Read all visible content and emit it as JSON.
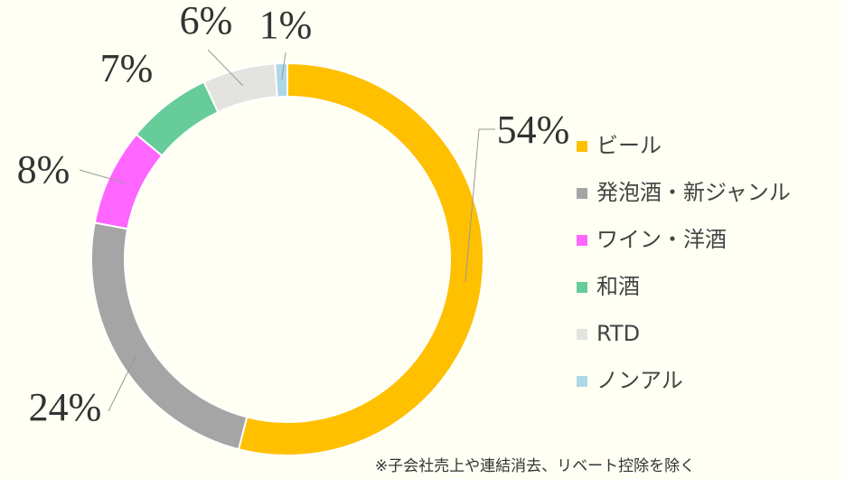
{
  "chart_data": {
    "type": "donut",
    "categories": [
      "ビール",
      "発泡酒・新ジャンル",
      "ワイン・洋酒",
      "和酒",
      "RTD",
      "ノンアル"
    ],
    "values": [
      54,
      24,
      8,
      7,
      6,
      1
    ],
    "value_labels": [
      "54%",
      "24%",
      "8%",
      "7%",
      "6%",
      "1%"
    ],
    "colors": [
      "#FFC000",
      "#A5A5A5",
      "#FF66FF",
      "#66CC99",
      "#E3E3DF",
      "#ADD8E6"
    ],
    "legend": "right",
    "note": "※子会社売上や連結消去、リベート控除を除く"
  }
}
